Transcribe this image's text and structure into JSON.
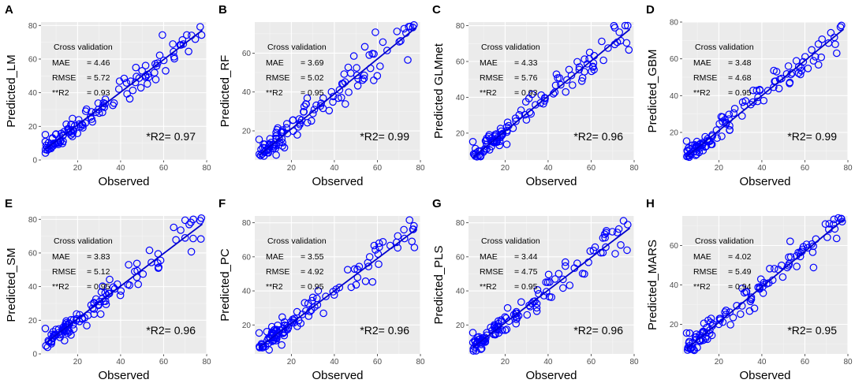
{
  "chart_data": [
    {
      "type": "scatter",
      "panel": "A",
      "ylabel": "Predicted_LM",
      "xlabel": "Observed",
      "xlim": [
        3,
        80
      ],
      "ylim": [
        0,
        82
      ],
      "xticks": [
        20,
        40,
        60,
        80
      ],
      "yticks": [
        0,
        20,
        40,
        60,
        80
      ],
      "annotation": {
        "title": "Cross validation",
        "mae_label": "MAE",
        "mae": "= 4.46",
        "rmse_label": "RMSE",
        "rmse": "= 5.72",
        "r2_label": "**R2",
        "r2": "= 0.93"
      },
      "r2_fit": "*R2= 0.97",
      "fit": {
        "slope": 0.97,
        "intercept": 1.5
      },
      "seed": 11
    },
    {
      "type": "scatter",
      "panel": "B",
      "ylabel": "Predicted_RF",
      "xlabel": "Observed",
      "xlim": [
        3,
        80
      ],
      "ylim": [
        5,
        76
      ],
      "xticks": [
        20,
        40,
        60,
        80
      ],
      "yticks": [
        20,
        40,
        60
      ],
      "annotation": {
        "title": "Cross validation",
        "mae_label": "MAE",
        "mae": "= 3.69",
        "rmse_label": "RMSE",
        "rmse": "= 5.02",
        "r2_label": "**R2",
        "r2": "= 0.95"
      },
      "r2_fit": "*R2= 0.99",
      "fit": {
        "slope": 0.9,
        "intercept": 3
      },
      "seed": 23
    },
    {
      "type": "scatter",
      "panel": "C",
      "ylabel": "Predicted GLMnet",
      "xlabel": "Observed",
      "xlim": [
        3,
        80
      ],
      "ylim": [
        5,
        82
      ],
      "xticks": [
        20,
        40,
        60,
        80
      ],
      "yticks": [
        20,
        40,
        60,
        80
      ],
      "annotation": {
        "title": "Cross validation",
        "mae_label": "MAE",
        "mae": "= 4.33",
        "rmse_label": "RMSE",
        "rmse": "= 5.76",
        "r2_label": "**R2",
        "r2": "= 0.93"
      },
      "r2_fit": "*R2= 0.96",
      "fit": {
        "slope": 0.98,
        "intercept": 1.5
      },
      "seed": 37
    },
    {
      "type": "scatter",
      "panel": "D",
      "ylabel": "Predicted_GBM",
      "xlabel": "Observed",
      "xlim": [
        3,
        80
      ],
      "ylim": [
        5,
        80
      ],
      "xticks": [
        20,
        40,
        60,
        80
      ],
      "yticks": [
        20,
        40,
        60,
        80
      ],
      "annotation": {
        "title": "Cross validation",
        "mae_label": "MAE",
        "mae": "= 3.48",
        "rmse_label": "RMSE",
        "rmse": "= 4.68",
        "r2_label": "**R2",
        "r2": "= 0.95"
      },
      "r2_fit": "*R2= 0.99",
      "fit": {
        "slope": 0.95,
        "intercept": 2
      },
      "seed": 41
    },
    {
      "type": "scatter",
      "panel": "E",
      "ylabel": "Predicted_SM",
      "xlabel": "Observed",
      "xlim": [
        3,
        80
      ],
      "ylim": [
        0,
        82
      ],
      "xticks": [
        20,
        40,
        60,
        80
      ],
      "yticks": [
        0,
        20,
        40,
        60,
        80
      ],
      "annotation": {
        "title": "Cross validation",
        "mae_label": "MAE",
        "mae": "= 3.83",
        "rmse_label": "RMSE",
        "rmse": "= 5.12",
        "r2_label": "**R2",
        "r2": "= 0.95"
      },
      "r2_fit": "*R2= 0.96",
      "fit": {
        "slope": 0.97,
        "intercept": 1.5
      },
      "seed": 53
    },
    {
      "type": "scatter",
      "panel": "F",
      "ylabel": "Predicted_PC",
      "xlabel": "Observed",
      "xlim": [
        3,
        80
      ],
      "ylim": [
        3,
        84
      ],
      "xticks": [
        20,
        40,
        60,
        80
      ],
      "yticks": [
        20,
        40,
        60,
        80
      ],
      "annotation": {
        "title": "Cross validation",
        "mae_label": "MAE",
        "mae": "= 3.55",
        "rmse_label": "RMSE",
        "rmse": "= 4.92",
        "r2_label": "**R2",
        "r2": "= 0.95"
      },
      "r2_fit": "*R2= 0.96",
      "fit": {
        "slope": 0.95,
        "intercept": 2
      },
      "seed": 67
    },
    {
      "type": "scatter",
      "panel": "G",
      "ylabel": "Predicted_PLS",
      "xlabel": "Observed",
      "xlim": [
        3,
        80
      ],
      "ylim": [
        3,
        84
      ],
      "xticks": [
        20,
        40,
        60,
        80
      ],
      "yticks": [
        20,
        40,
        60,
        80
      ],
      "annotation": {
        "title": "Cross validation",
        "mae_label": "MAE",
        "mae": "= 3.44",
        "rmse_label": "RMSE",
        "rmse": "= 4.75",
        "r2_label": "**R2",
        "r2": "= 0.95"
      },
      "r2_fit": "*R2= 0.96",
      "fit": {
        "slope": 0.96,
        "intercept": 2
      },
      "seed": 79
    },
    {
      "type": "scatter",
      "panel": "H",
      "ylabel": "Predicted_MARS",
      "xlabel": "Observed",
      "xlim": [
        3,
        80
      ],
      "ylim": [
        5,
        75
      ],
      "xticks": [
        20,
        40,
        60,
        80
      ],
      "yticks": [
        20,
        40,
        60
      ],
      "annotation": {
        "title": "Cross validation",
        "mae_label": "MAE",
        "mae": "= 4.02",
        "rmse_label": "RMSE",
        "rmse": "= 5.49",
        "r2_label": "**R2",
        "r2": "= 0.94"
      },
      "r2_fit": "*R2= 0.95",
      "fit": {
        "slope": 0.9,
        "intercept": 3
      },
      "seed": 97
    }
  ]
}
